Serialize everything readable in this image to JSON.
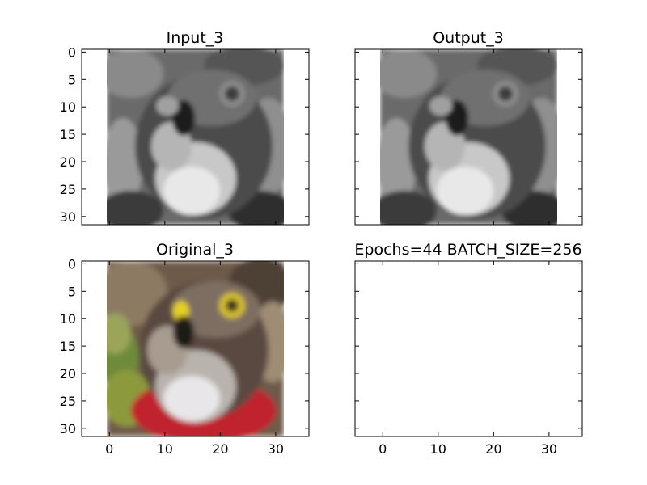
{
  "chart_data": [
    {
      "type": "image",
      "title": "Input_3",
      "colormap": "grayscale",
      "xlim": [
        -5,
        36
      ],
      "ylim": [
        31.5,
        -0.5
      ],
      "xticks": [
        0,
        10,
        20,
        30
      ],
      "yticks": [
        0,
        5,
        10,
        15,
        20,
        25,
        30
      ],
      "show_xticklabels": false,
      "show_yticklabels": true,
      "image_extent": [
        -0.5,
        31.5
      ]
    },
    {
      "type": "image",
      "title": "Output_3",
      "colormap": "grayscale",
      "xlim": [
        -5,
        36
      ],
      "ylim": [
        31.5,
        -0.5
      ],
      "xticks": [
        0,
        10,
        20,
        30
      ],
      "yticks": [
        0,
        5,
        10,
        15,
        20,
        25,
        30
      ],
      "show_xticklabels": false,
      "show_yticklabels": false,
      "image_extent": [
        -0.5,
        31.5
      ]
    },
    {
      "type": "image",
      "title": "Original_3",
      "colormap": "rgb",
      "xlim": [
        -5,
        36
      ],
      "ylim": [
        31.5,
        -0.5
      ],
      "xticks": [
        0,
        10,
        20,
        30
      ],
      "yticks": [
        0,
        5,
        10,
        15,
        20,
        25,
        30
      ],
      "show_xticklabels": true,
      "show_yticklabels": true,
      "image_extent": [
        -0.5,
        31.5
      ]
    },
    {
      "type": "empty",
      "title": "Epochs=44 BATCH_SIZE=256",
      "xlim": [
        -5,
        36
      ],
      "ylim": [
        31.5,
        -0.5
      ],
      "xticks": [
        0,
        10,
        20,
        30
      ],
      "yticks": [
        0,
        5,
        10,
        15,
        20,
        25,
        30
      ],
      "show_xticklabels": true,
      "show_yticklabels": false
    }
  ]
}
